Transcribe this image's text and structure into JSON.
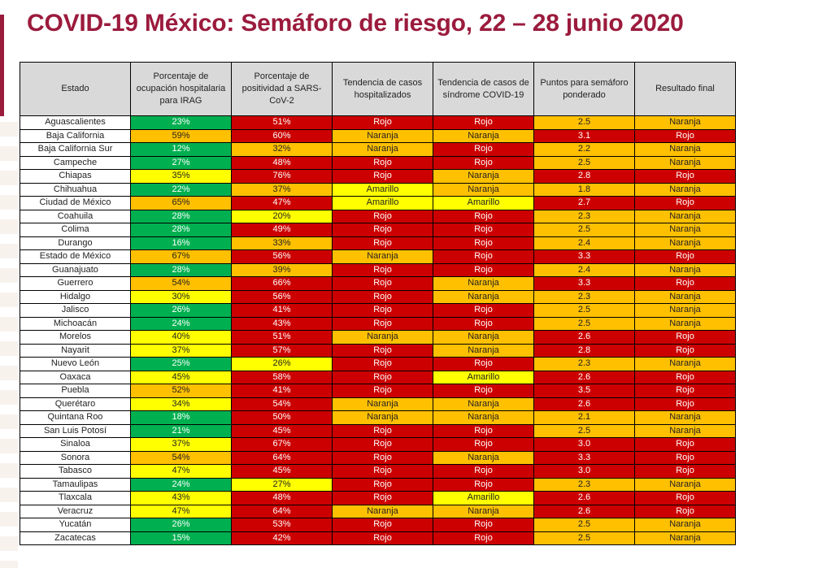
{
  "title": "COVID-19 México: Semáforo de riesgo, 22 – 28 junio 2020",
  "colors": {
    "title": "#9b1b3d",
    "green": "#00b050",
    "yellow": "#ffff00",
    "orange": "#ffc000",
    "red": "#cc0000",
    "header_bg": "#d9d9d9"
  },
  "headers": [
    "Estado",
    "Porcentaje de ocupación hospitalaria para IRAG",
    "Porcentaje de positividad a SARS-CoV-2",
    "Tendencia de casos hospitalizados",
    "Tendencia de casos de síndrome COVID-19",
    "Puntos para semáforo ponderado",
    "Resultado final"
  ],
  "rows": [
    {
      "estado": "Aguascalientes",
      "ocupacion": "23%",
      "positividad": "51%",
      "hosp": "Rojo",
      "sindrome": "Rojo",
      "puntos": "2.5",
      "resultado": "Naranja"
    },
    {
      "estado": "Baja California",
      "ocupacion": "59%",
      "positividad": "60%",
      "hosp": "Naranja",
      "sindrome": "Naranja",
      "puntos": "3.1",
      "resultado": "Rojo"
    },
    {
      "estado": "Baja California Sur",
      "ocupacion": "12%",
      "positividad": "32%",
      "hosp": "Naranja",
      "sindrome": "Rojo",
      "puntos": "2.2",
      "resultado": "Naranja"
    },
    {
      "estado": "Campeche",
      "ocupacion": "27%",
      "positividad": "48%",
      "hosp": "Rojo",
      "sindrome": "Rojo",
      "puntos": "2.5",
      "resultado": "Naranja"
    },
    {
      "estado": "Chiapas",
      "ocupacion": "35%",
      "positividad": "76%",
      "hosp": "Rojo",
      "sindrome": "Naranja",
      "puntos": "2.8",
      "resultado": "Rojo"
    },
    {
      "estado": "Chihuahua",
      "ocupacion": "22%",
      "positividad": "37%",
      "hosp": "Amarillo",
      "sindrome": "Naranja",
      "puntos": "1.8",
      "resultado": "Naranja"
    },
    {
      "estado": "Ciudad de México",
      "ocupacion": "65%",
      "positividad": "47%",
      "hosp": "Amarillo",
      "sindrome": "Amarillo",
      "puntos": "2.7",
      "resultado": "Rojo"
    },
    {
      "estado": "Coahuila",
      "ocupacion": "28%",
      "positividad": "20%",
      "hosp": "Rojo",
      "sindrome": "Rojo",
      "puntos": "2.3",
      "resultado": "Naranja"
    },
    {
      "estado": "Colima",
      "ocupacion": "28%",
      "positividad": "49%",
      "hosp": "Rojo",
      "sindrome": "Rojo",
      "puntos": "2.5",
      "resultado": "Naranja"
    },
    {
      "estado": "Durango",
      "ocupacion": "16%",
      "positividad": "33%",
      "hosp": "Rojo",
      "sindrome": "Rojo",
      "puntos": "2.4",
      "resultado": "Naranja"
    },
    {
      "estado": "Estado de México",
      "ocupacion": "67%",
      "positividad": "56%",
      "hosp": "Naranja",
      "sindrome": "Rojo",
      "puntos": "3.3",
      "resultado": "Rojo"
    },
    {
      "estado": "Guanajuato",
      "ocupacion": "28%",
      "positividad": "39%",
      "hosp": "Rojo",
      "sindrome": "Rojo",
      "puntos": "2.4",
      "resultado": "Naranja"
    },
    {
      "estado": "Guerrero",
      "ocupacion": "54%",
      "positividad": "66%",
      "hosp": "Rojo",
      "sindrome": "Naranja",
      "puntos": "3.3",
      "resultado": "Rojo"
    },
    {
      "estado": "Hidalgo",
      "ocupacion": "30%",
      "positividad": "56%",
      "hosp": "Rojo",
      "sindrome": "Naranja",
      "puntos": "2.3",
      "resultado": "Naranja"
    },
    {
      "estado": "Jalisco",
      "ocupacion": "26%",
      "positividad": "41%",
      "hosp": "Rojo",
      "sindrome": "Rojo",
      "puntos": "2.5",
      "resultado": "Naranja"
    },
    {
      "estado": "Michoacán",
      "ocupacion": "24%",
      "positividad": "43%",
      "hosp": "Rojo",
      "sindrome": "Rojo",
      "puntos": "2.5",
      "resultado": "Naranja"
    },
    {
      "estado": "Morelos",
      "ocupacion": "40%",
      "positividad": "51%",
      "hosp": "Naranja",
      "sindrome": "Naranja",
      "puntos": "2.6",
      "resultado": "Rojo"
    },
    {
      "estado": "Nayarit",
      "ocupacion": "37%",
      "positividad": "57%",
      "hosp": "Rojo",
      "sindrome": "Naranja",
      "puntos": "2.8",
      "resultado": "Rojo"
    },
    {
      "estado": "Nuevo León",
      "ocupacion": "25%",
      "positividad": "26%",
      "hosp": "Rojo",
      "sindrome": "Rojo",
      "puntos": "2.3",
      "resultado": "Naranja"
    },
    {
      "estado": "Oaxaca",
      "ocupacion": "45%",
      "positividad": "58%",
      "hosp": "Rojo",
      "sindrome": "Amarillo",
      "puntos": "2.6",
      "resultado": "Rojo"
    },
    {
      "estado": "Puebla",
      "ocupacion": "52%",
      "positividad": "41%",
      "hosp": "Rojo",
      "sindrome": "Rojo",
      "puntos": "3.5",
      "resultado": "Rojo"
    },
    {
      "estado": "Querétaro",
      "ocupacion": "34%",
      "positividad": "54%",
      "hosp": "Naranja",
      "sindrome": "Naranja",
      "puntos": "2.6",
      "resultado": "Rojo"
    },
    {
      "estado": "Quintana Roo",
      "ocupacion": "18%",
      "positividad": "50%",
      "hosp": "Naranja",
      "sindrome": "Naranja",
      "puntos": "2.1",
      "resultado": "Naranja"
    },
    {
      "estado": "San Luis Potosí",
      "ocupacion": "21%",
      "positividad": "45%",
      "hosp": "Rojo",
      "sindrome": "Rojo",
      "puntos": "2.5",
      "resultado": "Naranja"
    },
    {
      "estado": "Sinaloa",
      "ocupacion": "37%",
      "positividad": "67%",
      "hosp": "Rojo",
      "sindrome": "Rojo",
      "puntos": "3.0",
      "resultado": "Rojo"
    },
    {
      "estado": "Sonora",
      "ocupacion": "54%",
      "positividad": "64%",
      "hosp": "Rojo",
      "sindrome": "Naranja",
      "puntos": "3.3",
      "resultado": "Rojo"
    },
    {
      "estado": "Tabasco",
      "ocupacion": "47%",
      "positividad": "45%",
      "hosp": "Rojo",
      "sindrome": "Rojo",
      "puntos": "3.0",
      "resultado": "Rojo"
    },
    {
      "estado": "Tamaulipas",
      "ocupacion": "24%",
      "positividad": "27%",
      "hosp": "Rojo",
      "sindrome": "Rojo",
      "puntos": "2.3",
      "resultado": "Naranja"
    },
    {
      "estado": "Tlaxcala",
      "ocupacion": "43%",
      "positividad": "48%",
      "hosp": "Rojo",
      "sindrome": "Amarillo",
      "puntos": "2.6",
      "resultado": "Rojo"
    },
    {
      "estado": "Veracruz",
      "ocupacion": "47%",
      "positividad": "64%",
      "hosp": "Naranja",
      "sindrome": "Naranja",
      "puntos": "2.6",
      "resultado": "Rojo"
    },
    {
      "estado": "Yucatán",
      "ocupacion": "26%",
      "positividad": "53%",
      "hosp": "Rojo",
      "sindrome": "Rojo",
      "puntos": "2.5",
      "resultado": "Naranja"
    },
    {
      "estado": "Zacatecas",
      "ocupacion": "15%",
      "positividad": "42%",
      "hosp": "Rojo",
      "sindrome": "Rojo",
      "puntos": "2.5",
      "resultado": "Naranja"
    }
  ]
}
